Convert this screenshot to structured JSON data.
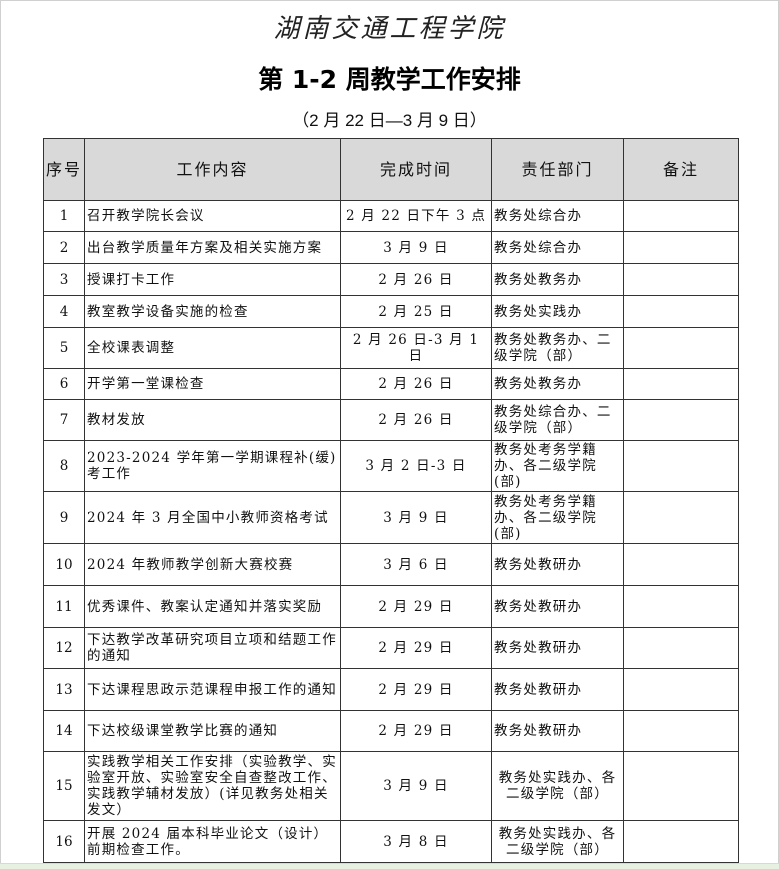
{
  "header": {
    "institution": "湖南交通工程学院",
    "title": "第 1-2 周教学工作安排",
    "date_range": "（2 月 22 日—3 月 9 日）"
  },
  "table": {
    "columns": [
      "序号",
      "工作内容",
      "完成时间",
      "责任部门",
      "备注"
    ],
    "rows": [
      {
        "no": "1",
        "content": "召开教学院长会议",
        "time": "2 月 22 日下午 3 点",
        "dept": "教务处综合办",
        "note": ""
      },
      {
        "no": "2",
        "content": "出台教学质量年方案及相关实施方案",
        "time": "3 月 9 日",
        "dept": "教务处综合办",
        "note": ""
      },
      {
        "no": "3",
        "content": "授课打卡工作",
        "time": "2 月 26 日",
        "dept": "教务处教务办",
        "note": ""
      },
      {
        "no": "4",
        "content": "教室教学设备实施的检查",
        "time": "2 月 25 日",
        "dept": "教务处实践办",
        "note": ""
      },
      {
        "no": "5",
        "content": "全校课表调整",
        "time": "2 月 26 日-3 月 1 日",
        "dept": "教务处教务办、二级学院（部）",
        "note": ""
      },
      {
        "no": "6",
        "content": "开学第一堂课检查",
        "time": "2 月 26 日",
        "dept": "教务处教务办",
        "note": ""
      },
      {
        "no": "7",
        "content": "教材发放",
        "time": "2 月 26 日",
        "dept": "教务处综合办、二级学院（部）",
        "note": ""
      },
      {
        "no": "8",
        "content": "2023-2024 学年第一学期课程补(缓)考工作",
        "time": "3 月 2 日-3 日",
        "dept": "教务处考务学籍办、各二级学院(部)",
        "note": ""
      },
      {
        "no": "9",
        "content": "2024 年 3 月全国中小教师资格考试",
        "time": "3 月 9 日",
        "dept": "教务处考务学籍办、各二级学院(部)",
        "note": ""
      },
      {
        "no": "10",
        "content": "2024 年教师教学创新大赛校赛",
        "time": "3 月 6 日",
        "dept": "教务处教研办",
        "note": ""
      },
      {
        "no": "11",
        "content": "优秀课件、教案认定通知并落实奖励",
        "time": "2 月 29 日",
        "dept": "教务处教研办",
        "note": ""
      },
      {
        "no": "12",
        "content": "下达教学改革研究项目立项和结题工作的通知",
        "time": "2 月 29 日",
        "dept": "教务处教研办",
        "note": ""
      },
      {
        "no": "13",
        "content": "下达课程思政示范课程申报工作的通知",
        "time": "2 月 29 日",
        "dept": "教务处教研办",
        "note": ""
      },
      {
        "no": "14",
        "content": "下达校级课堂教学比赛的通知",
        "time": "2 月 29 日",
        "dept": "教务处教研办",
        "note": ""
      },
      {
        "no": "15",
        "content": "实践教学相关工作安排（实验教学、实验室开放、实验室安全自查整改工作、实践教学辅材发放）(详见教务处相关发文）",
        "time": "3 月 9 日",
        "dept": "教务处实践办、各二级学院（部）",
        "note": ""
      },
      {
        "no": "16",
        "content": "开展 2024 届本科毕业论文（设计）前期检查工作。",
        "time": "3 月 8 日",
        "dept": "教务处实践办、各二级学院（部）",
        "note": ""
      }
    ]
  }
}
